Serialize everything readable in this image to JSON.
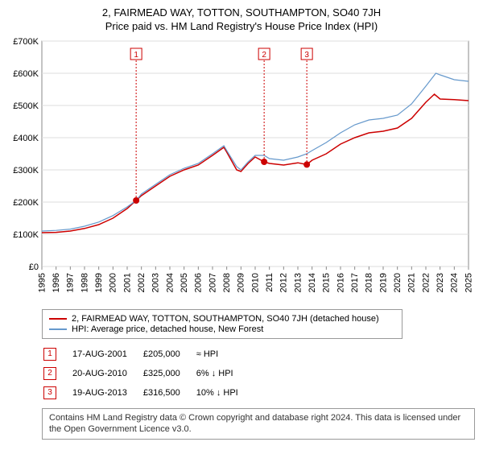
{
  "title": "2, FAIRMEAD WAY, TOTTON, SOUTHAMPTON, SO40 7JH",
  "subtitle": "Price paid vs. HM Land Registry's House Price Index (HPI)",
  "chart": {
    "type": "line",
    "background_color": "#ffffff",
    "grid_color": "#dddddd",
    "axis_color": "#888888",
    "x_years": [
      1995,
      1996,
      1997,
      1998,
      1999,
      2000,
      2001,
      2002,
      2003,
      2004,
      2005,
      2006,
      2007,
      2008,
      2009,
      2010,
      2011,
      2012,
      2013,
      2014,
      2015,
      2016,
      2017,
      2018,
      2019,
      2020,
      2021,
      2022,
      2023,
      2024,
      2025
    ],
    "xlim": [
      1995,
      2025
    ],
    "ylim": [
      0,
      700000
    ],
    "ytick_step": 100000,
    "ytick_labels": [
      "£0",
      "£100K",
      "£200K",
      "£300K",
      "£400K",
      "£500K",
      "£600K",
      "£700K"
    ],
    "label_fontsize": 11,
    "series": [
      {
        "name": "price_paid",
        "label": "2, FAIRMEAD WAY, TOTTON, SOUTHAMPTON, SO40 7JH (detached house)",
        "color": "#cc0000",
        "line_width": 1.5,
        "points": [
          [
            1995.0,
            105000
          ],
          [
            1996.0,
            106000
          ],
          [
            1997.0,
            110000
          ],
          [
            1998.0,
            118000
          ],
          [
            1999.0,
            130000
          ],
          [
            2000.0,
            150000
          ],
          [
            2001.0,
            180000
          ],
          [
            2001.63,
            205000
          ],
          [
            2002.0,
            220000
          ],
          [
            2003.0,
            250000
          ],
          [
            2004.0,
            280000
          ],
          [
            2005.0,
            300000
          ],
          [
            2006.0,
            315000
          ],
          [
            2007.0,
            345000
          ],
          [
            2007.8,
            370000
          ],
          [
            2008.0,
            355000
          ],
          [
            2008.7,
            300000
          ],
          [
            2009.0,
            295000
          ],
          [
            2009.5,
            320000
          ],
          [
            2010.0,
            340000
          ],
          [
            2010.63,
            325000
          ],
          [
            2011.0,
            320000
          ],
          [
            2012.0,
            315000
          ],
          [
            2013.0,
            322000
          ],
          [
            2013.63,
            316500
          ],
          [
            2014.0,
            330000
          ],
          [
            2015.0,
            350000
          ],
          [
            2016.0,
            380000
          ],
          [
            2017.0,
            400000
          ],
          [
            2018.0,
            415000
          ],
          [
            2019.0,
            420000
          ],
          [
            2020.0,
            430000
          ],
          [
            2021.0,
            460000
          ],
          [
            2022.0,
            510000
          ],
          [
            2022.6,
            535000
          ],
          [
            2023.0,
            520000
          ],
          [
            2024.0,
            518000
          ],
          [
            2025.0,
            515000
          ]
        ]
      },
      {
        "name": "hpi",
        "label": "HPI: Average price, detached house, New Forest",
        "color": "#6699cc",
        "line_width": 1.2,
        "points": [
          [
            1995.0,
            110000
          ],
          [
            1996.0,
            112000
          ],
          [
            1997.0,
            116000
          ],
          [
            1998.0,
            125000
          ],
          [
            1999.0,
            138000
          ],
          [
            2000.0,
            158000
          ],
          [
            2001.0,
            185000
          ],
          [
            2001.63,
            205000
          ],
          [
            2002.0,
            225000
          ],
          [
            2003.0,
            255000
          ],
          [
            2004.0,
            285000
          ],
          [
            2005.0,
            305000
          ],
          [
            2006.0,
            320000
          ],
          [
            2007.0,
            350000
          ],
          [
            2007.8,
            375000
          ],
          [
            2008.0,
            360000
          ],
          [
            2008.7,
            310000
          ],
          [
            2009.0,
            300000
          ],
          [
            2009.5,
            325000
          ],
          [
            2010.0,
            345000
          ],
          [
            2010.63,
            345000
          ],
          [
            2011.0,
            335000
          ],
          [
            2012.0,
            330000
          ],
          [
            2013.0,
            340000
          ],
          [
            2013.63,
            350000
          ],
          [
            2014.0,
            360000
          ],
          [
            2015.0,
            385000
          ],
          [
            2016.0,
            415000
          ],
          [
            2017.0,
            440000
          ],
          [
            2018.0,
            455000
          ],
          [
            2019.0,
            460000
          ],
          [
            2020.0,
            470000
          ],
          [
            2021.0,
            505000
          ],
          [
            2022.0,
            560000
          ],
          [
            2022.7,
            600000
          ],
          [
            2023.0,
            595000
          ],
          [
            2024.0,
            580000
          ],
          [
            2025.0,
            575000
          ]
        ]
      }
    ],
    "markers": [
      {
        "n": "1",
        "year": 2001.63,
        "price": 205000
      },
      {
        "n": "2",
        "year": 2010.63,
        "price": 325000
      },
      {
        "n": "3",
        "year": 2013.63,
        "price": 316500
      }
    ],
    "marker_color": "#cc0000",
    "marker_label_top_y": 660000
  },
  "legend": {
    "items": [
      {
        "color": "#cc0000",
        "label": "2, FAIRMEAD WAY, TOTTON, SOUTHAMPTON, SO40 7JH (detached house)"
      },
      {
        "color": "#6699cc",
        "label": "HPI: Average price, detached house, New Forest"
      }
    ]
  },
  "events": [
    {
      "n": "1",
      "date": "17-AUG-2001",
      "price": "£205,000",
      "delta": "≈ HPI"
    },
    {
      "n": "2",
      "date": "20-AUG-2010",
      "price": "£325,000",
      "delta": "6% ↓ HPI"
    },
    {
      "n": "3",
      "date": "19-AUG-2013",
      "price": "£316,500",
      "delta": "10% ↓ HPI"
    }
  ],
  "footer": "Contains HM Land Registry data © Crown copyright and database right 2024. This data is licensed under the Open Government Licence v3.0."
}
